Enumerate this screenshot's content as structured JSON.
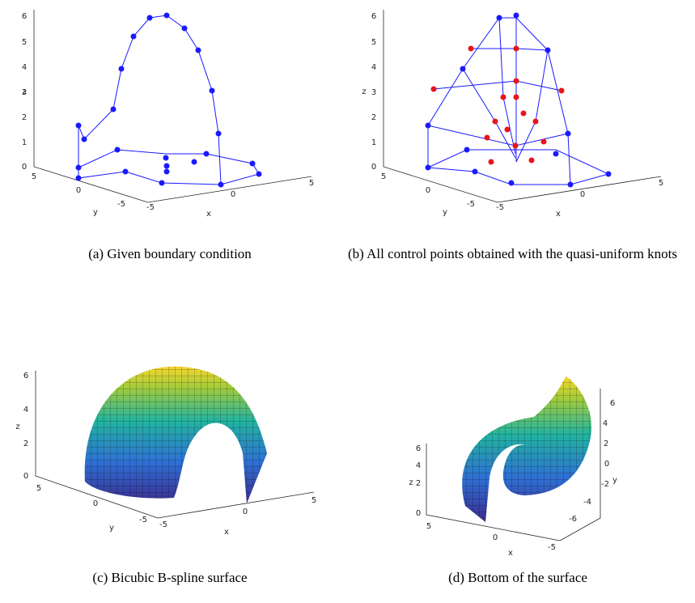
{
  "panels": [
    {
      "caption": "(a) Given boundary condition",
      "axes": {
        "z_label": "z",
        "y_label": "y",
        "x_label": "x",
        "z_ticks": [
          "6",
          "5",
          "4",
          "3",
          "2",
          "1",
          "0"
        ],
        "y_ticks": [
          "5",
          "0",
          "-5"
        ],
        "x_ticks": [
          "-5",
          "0",
          "5"
        ]
      }
    },
    {
      "caption": "(b) All control points obtained with the quasi-uniform knots",
      "axes": {
        "z_label": "z",
        "y_label": "y",
        "x_label": "x",
        "z_ticks": [
          "6",
          "5",
          "4",
          "3",
          "2",
          "1",
          "0"
        ],
        "y_ticks": [
          "5",
          "0",
          "-5"
        ],
        "x_ticks": [
          "-5",
          "0",
          "5"
        ]
      }
    },
    {
      "caption": "(c) Bicubic B-spline surface",
      "axes": {
        "z_label": "z",
        "y_label": "y",
        "x_label": "x",
        "z_ticks": [
          "6",
          "4",
          "2",
          "0"
        ],
        "y_ticks": [
          "5",
          "0",
          "-5"
        ],
        "x_ticks": [
          "-5",
          "0",
          "5"
        ]
      }
    },
    {
      "caption": "(d) Bottom of the surface",
      "axes": {
        "z_label": "z",
        "y_label": "y",
        "x_label": "x",
        "z_ticks": [
          "6",
          "4",
          "2",
          "0"
        ],
        "y_ticks": [
          "6",
          "4",
          "2",
          "0",
          "-2",
          "-4",
          "-6"
        ],
        "x_ticks": [
          "5",
          "0",
          "-5"
        ]
      }
    }
  ]
}
